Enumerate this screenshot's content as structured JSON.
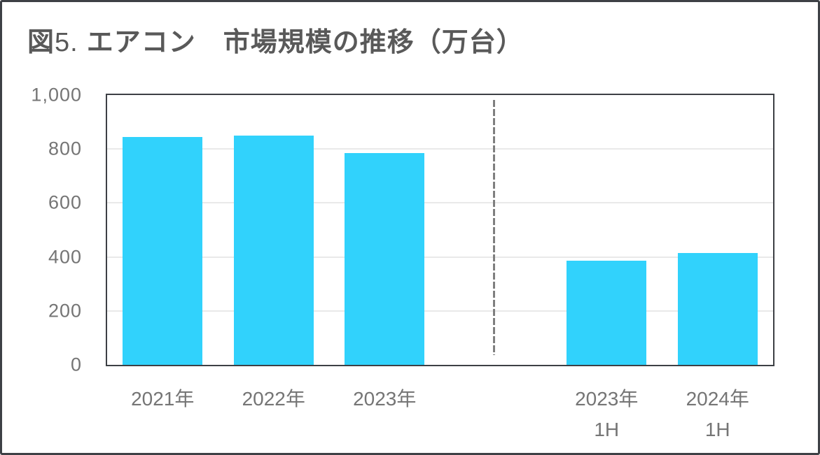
{
  "title": {
    "prefix": "図",
    "number": "5.",
    "text": "エアコン　市場規模の推移（万台）"
  },
  "colors": {
    "bar": "#31d2fc",
    "title_text": "#595959",
    "axis_text": "#757575",
    "frame_border": "#3d4045",
    "gridline": "#e9e9e9",
    "divider": "#7f7f7f"
  },
  "chart_data": {
    "type": "bar",
    "title": "図5. エアコン　市場規模の推移（万台）",
    "unit": "万台",
    "ylim": [
      0,
      1000
    ],
    "yticks": [
      {
        "label": "1,000",
        "value": 1000
      },
      {
        "label": "800",
        "value": 800
      },
      {
        "label": "600",
        "value": 600
      },
      {
        "label": "400",
        "value": 400
      },
      {
        "label": "200",
        "value": 200
      },
      {
        "label": "0",
        "value": 0
      }
    ],
    "grid": "horizontal",
    "legend": "none",
    "divider_between_groups": "vertical dashed line",
    "groups": [
      {
        "items": [
          {
            "label": "2021年",
            "value": 845
          },
          {
            "label": "2022年",
            "value": 850
          },
          {
            "label": "2023年",
            "value": 785
          }
        ]
      },
      {
        "items": [
          {
            "label": "2023年",
            "sublabel": "1H",
            "value": 385
          },
          {
            "label": "2024年",
            "sublabel": "1H",
            "value": 415
          }
        ]
      }
    ]
  }
}
